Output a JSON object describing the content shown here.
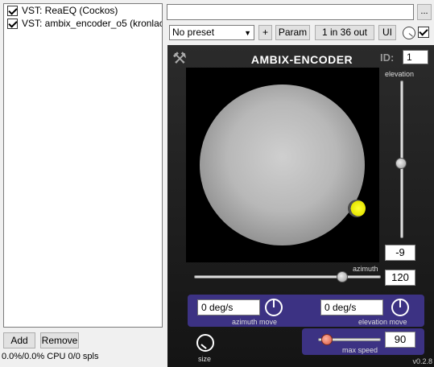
{
  "fx_chain": {
    "items": [
      {
        "label": "VST: ReaEQ (Cockos)",
        "enabled": true
      },
      {
        "label": "VST: ambix_encoder_o5 (kronlac...",
        "enabled": true
      }
    ],
    "add_label": "Add",
    "remove_label": "Remove",
    "cpu_status": "0.0%/0.0% CPU 0/0 spls"
  },
  "toolbar": {
    "preset_name": "",
    "more_label": "...",
    "preset_select": "No preset",
    "plus_label": "+",
    "param_label": "Param",
    "io_label": "1 in 36 out",
    "ui_label": "UI",
    "bypass_checked": true
  },
  "plugin": {
    "title": "AMBIX-ENCODER",
    "id_label": "ID:",
    "id_value": "1",
    "elevation_label": "elevation",
    "elevation_value": "-9",
    "azimuth_label": "azimuth",
    "azimuth_value": "120",
    "azimuth_move_value": "0 deg/s",
    "azimuth_move_label": "azimuth move",
    "elevation_move_value": "0 deg/s",
    "elevation_move_label": "elevation move",
    "max_speed_value": "90",
    "max_speed_label": "max speed",
    "size_label": "size",
    "version": "v0.2.8",
    "source_color": "#e6e600",
    "panel_color": "#3c3283"
  }
}
